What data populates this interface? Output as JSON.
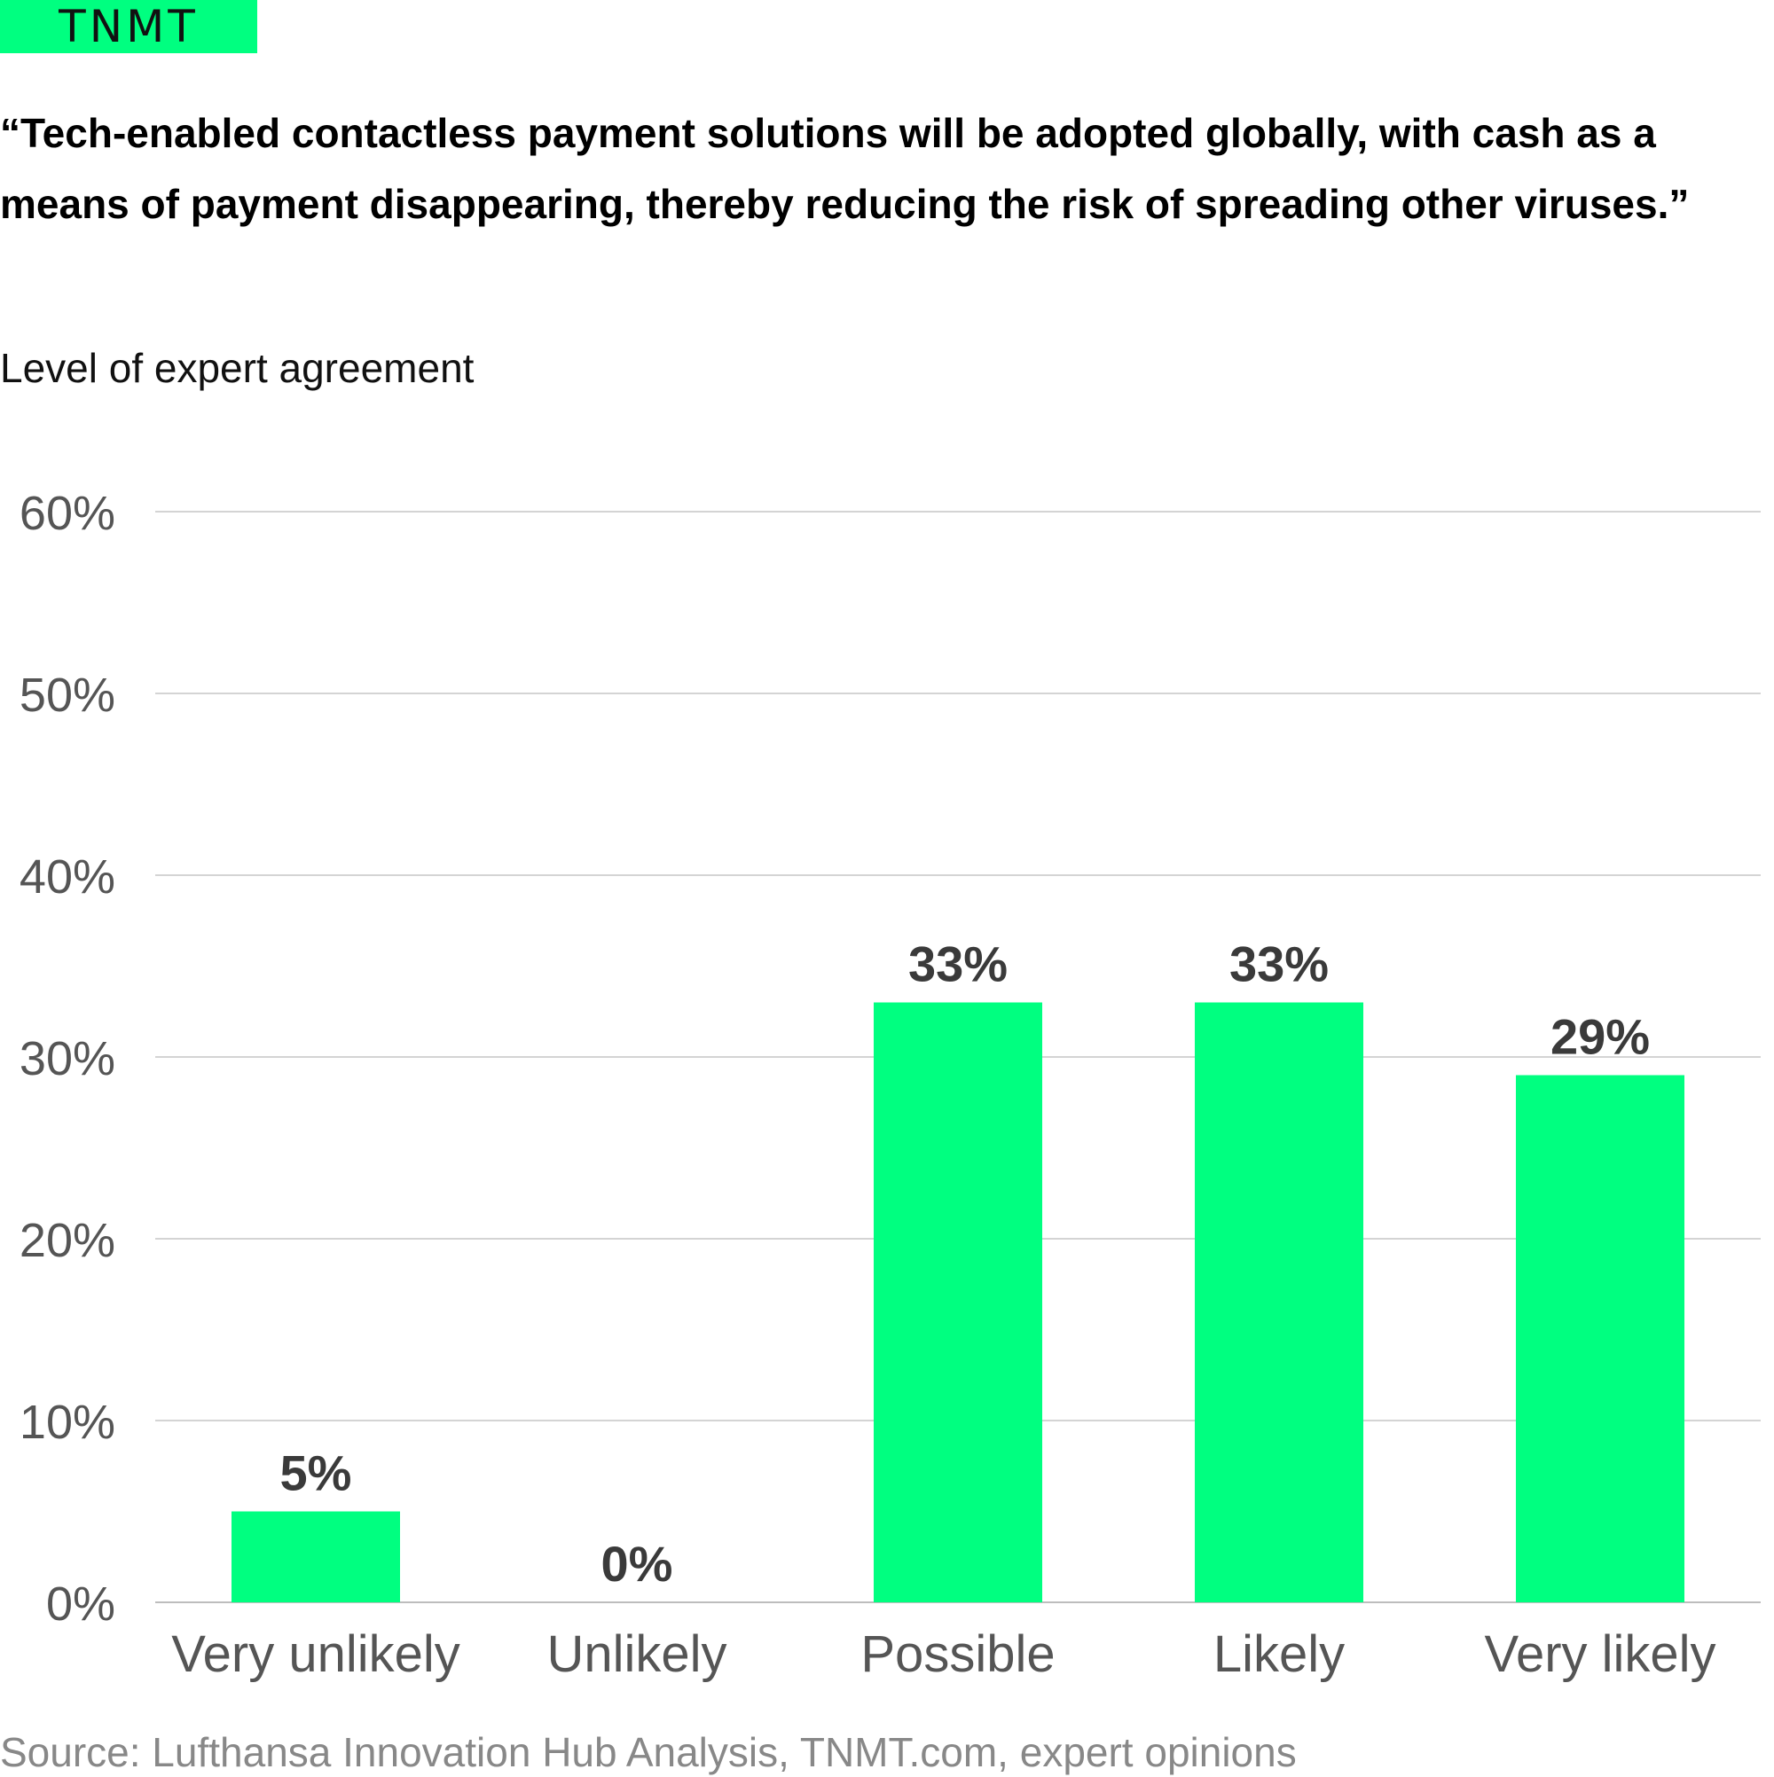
{
  "brand": {
    "logo_text": "TNMT"
  },
  "header": {
    "title": "“Tech-enabled contactless payment solutions will be adopted globally, with cash as a means of payment disappearing, thereby reducing the risk of spreading other viruses.”",
    "subtitle": "Level of expert agreement"
  },
  "chart_data": {
    "type": "bar",
    "title": "“Tech-enabled contactless payment solutions will be adopted globally, with cash as a means of payment disappearing, thereby reducing the risk of spreading other viruses.”",
    "ylabel": "Level of expert agreement",
    "categories": [
      "Very unlikely",
      "Unlikely",
      "Possible",
      "Likely",
      "Very likely"
    ],
    "values": [
      5,
      0,
      33,
      33,
      29
    ],
    "value_labels": [
      "5%",
      "0%",
      "33%",
      "33%",
      "29%"
    ],
    "ylim": [
      0,
      60
    ],
    "yticks": [
      0,
      10,
      20,
      30,
      40,
      50,
      60
    ],
    "ytick_labels": [
      "0%",
      "10%",
      "20%",
      "30%",
      "40%",
      "50%",
      "60%"
    ],
    "grid": true,
    "legend": "none",
    "bar_color": "#00ff80"
  },
  "footer": {
    "source": "Source: Lufthansa Innovation Hub Analysis, TNMT.com, expert opinions"
  }
}
